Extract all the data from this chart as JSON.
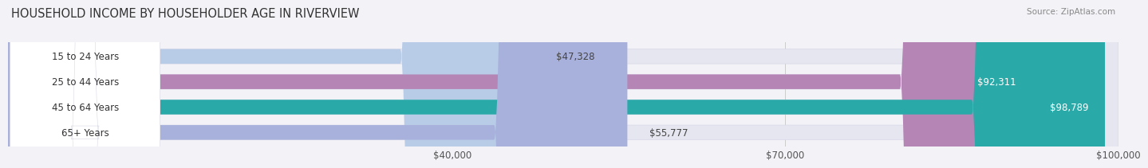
{
  "title": "HOUSEHOLD INCOME BY HOUSEHOLDER AGE IN RIVERVIEW",
  "source": "Source: ZipAtlas.com",
  "categories": [
    "15 to 24 Years",
    "25 to 44 Years",
    "45 to 64 Years",
    "65+ Years"
  ],
  "values": [
    47328,
    92311,
    98789,
    55777
  ],
  "bar_colors": [
    "#b8cce8",
    "#b585b5",
    "#29aaa8",
    "#a8b0dc"
  ],
  "value_labels": [
    "$47,328",
    "$92,311",
    "$98,789",
    "$55,777"
  ],
  "xmin": 0,
  "xmax": 100000,
  "xticks": [
    40000,
    70000,
    100000
  ],
  "xtick_labels": [
    "$40,000",
    "$70,000",
    "$100,000"
  ],
  "background_color": "#f2f2f7",
  "bar_background": "#e6e6f0",
  "title_fontsize": 10.5,
  "label_fontsize": 8.5,
  "tick_fontsize": 8.5,
  "source_fontsize": 7.5
}
